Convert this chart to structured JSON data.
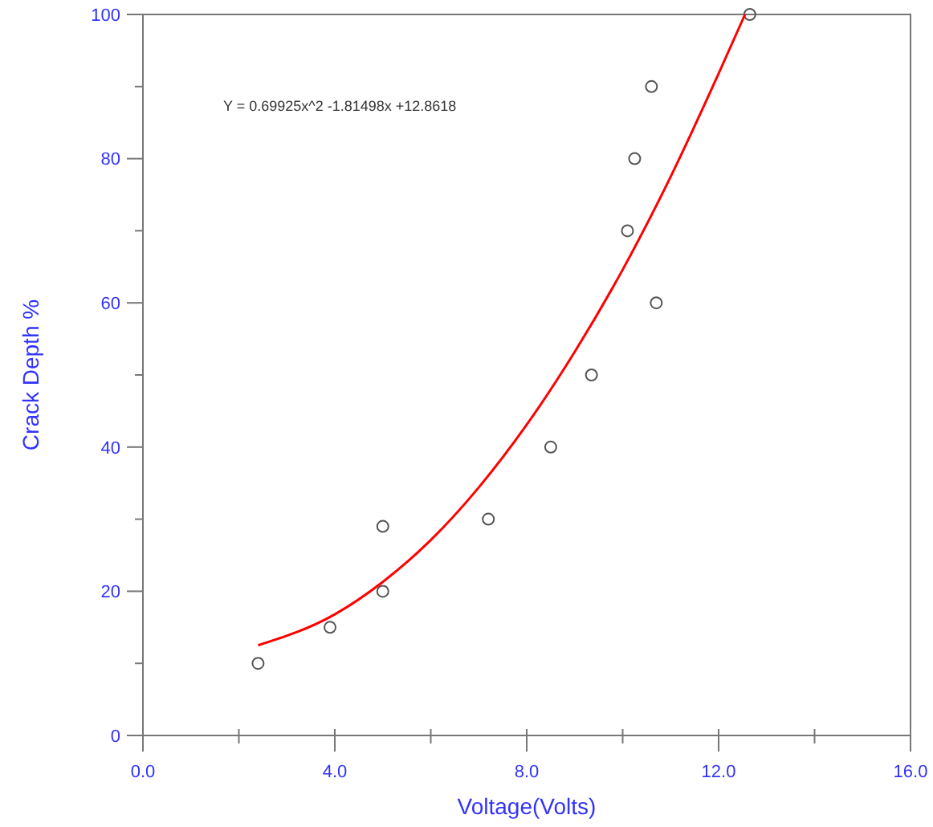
{
  "chart_data": {
    "type": "scatter",
    "xlabel": "Voltage(Volts)",
    "ylabel": "Crack Depth %",
    "xlim": [
      0,
      16
    ],
    "ylim": [
      0,
      100
    ],
    "xticks": [
      {
        "value": 0,
        "label": "0.0"
      },
      {
        "value": 2,
        "label": null
      },
      {
        "value": 4,
        "label": "4.0"
      },
      {
        "value": 6,
        "label": null
      },
      {
        "value": 8,
        "label": "8.0"
      },
      {
        "value": 10,
        "label": null
      },
      {
        "value": 12,
        "label": "12.0"
      },
      {
        "value": 14,
        "label": null
      },
      {
        "value": 16,
        "label": "16.0"
      }
    ],
    "yticks": [
      0,
      {
        "value": 10,
        "label": null
      },
      20,
      {
        "value": 30,
        "label": null
      },
      40,
      {
        "value": 50,
        "label": null
      },
      60,
      {
        "value": 70,
        "label": null
      },
      80,
      {
        "value": 90,
        "label": null
      },
      100
    ],
    "grid": false,
    "annotations": [
      "Y = 0.69925x^2 -1.81498x +12.8618"
    ],
    "series": [
      {
        "color": "#555555",
        "marker": "circle",
        "x": [
          2.4,
          3.9,
          5.0,
          5.0,
          7.2,
          8.5,
          9.35,
          10.1,
          10.25,
          10.6,
          10.7,
          12.65
        ],
        "values": [
          10,
          15,
          29,
          20,
          30,
          40,
          50,
          70,
          80,
          90,
          60,
          100
        ]
      },
      {
        "type": "line",
        "color": "#ff0000",
        "marker": "none",
        "line_style": "solid",
        "x": [
          2.4,
          4,
          5,
          6,
          7,
          8,
          9,
          10,
          11,
          12,
          12.55
        ],
        "values": [
          12.5,
          16.8,
          21.3,
          27.1,
          34.4,
          43.1,
          53.2,
          64.6,
          77.5,
          91.8,
          100
        ]
      }
    ]
  }
}
